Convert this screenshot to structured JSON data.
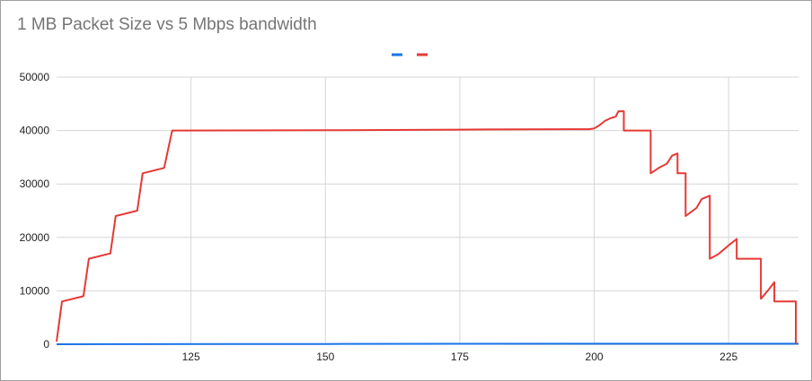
{
  "chart_data": {
    "type": "line",
    "title": "1 MB Packet Size vs 5 Mbps bandwidth",
    "xlabel": "",
    "ylabel": "",
    "xlim": [
      100,
      238
    ],
    "ylim": [
      0,
      50000
    ],
    "x_ticks": [
      125,
      150,
      175,
      200,
      225
    ],
    "y_ticks": [
      0,
      10000,
      20000,
      30000,
      40000,
      50000
    ],
    "grid": true,
    "legend_position": "top",
    "series": [
      {
        "color": "#1a73e8",
        "points": [
          [
            100,
            0
          ],
          [
            150,
            50
          ],
          [
            200,
            100
          ],
          [
            238,
            100
          ]
        ]
      },
      {
        "color": "#e53935",
        "points": [
          [
            100,
            500
          ],
          [
            101,
            8000
          ],
          [
            105,
            9000
          ],
          [
            106,
            16000
          ],
          [
            110,
            17000
          ],
          [
            111,
            24000
          ],
          [
            115,
            25000
          ],
          [
            116,
            32000
          ],
          [
            120,
            33000
          ],
          [
            121.5,
            40000
          ],
          [
            150,
            40050
          ],
          [
            180,
            40200
          ],
          [
            199,
            40250
          ],
          [
            200,
            40400
          ],
          [
            201,
            41000
          ],
          [
            202,
            41800
          ],
          [
            203,
            42300
          ],
          [
            204,
            42600
          ],
          [
            204.5,
            43600
          ],
          [
            205.5,
            43600
          ],
          [
            205.5,
            40000
          ],
          [
            210.5,
            40000
          ],
          [
            210.5,
            32000
          ],
          [
            212,
            33000
          ],
          [
            213.5,
            33800
          ],
          [
            214.5,
            35300
          ],
          [
            215.5,
            35700
          ],
          [
            215.5,
            32000
          ],
          [
            217,
            32000
          ],
          [
            217,
            24000
          ],
          [
            219,
            25500
          ],
          [
            220,
            27200
          ],
          [
            221.5,
            27800
          ],
          [
            221.5,
            16000
          ],
          [
            223,
            16800
          ],
          [
            225,
            18500
          ],
          [
            226.5,
            19700
          ],
          [
            226.5,
            16000
          ],
          [
            231,
            16000
          ],
          [
            231,
            8500
          ],
          [
            232.5,
            10300
          ],
          [
            233.5,
            11600
          ],
          [
            233.5,
            8000
          ],
          [
            237.5,
            8000
          ],
          [
            237.5,
            100
          ]
        ]
      }
    ]
  }
}
